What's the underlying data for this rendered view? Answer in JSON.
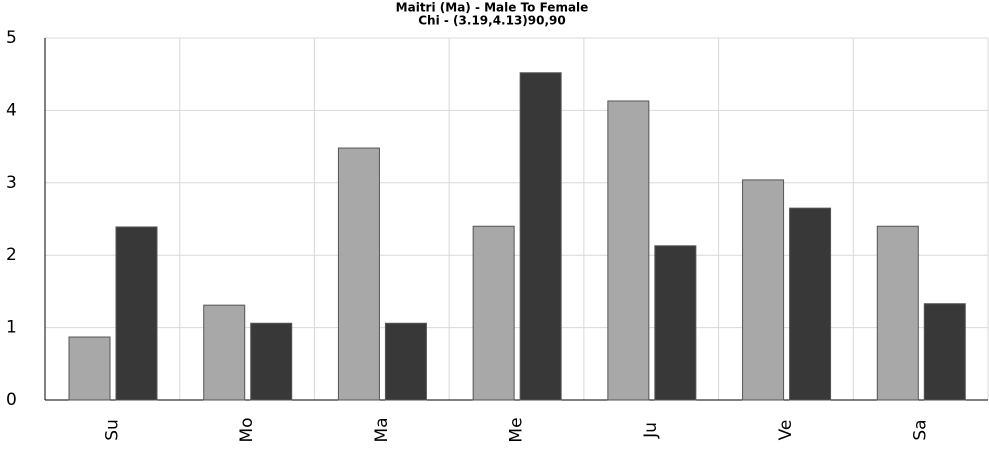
{
  "chart_data": {
    "type": "bar",
    "title": "Maitri (Ma) - Male To Female",
    "subtitle": "Chi - (3.19,4.13)90,90",
    "categories": [
      "Su",
      "Mo",
      "Ma",
      "Me",
      "Ju",
      "Ve",
      "Sa"
    ],
    "series": [
      {
        "color": "#a8a8a8",
        "values": [
          0.87,
          1.31,
          3.48,
          2.4,
          4.13,
          3.04,
          2.4
        ]
      },
      {
        "color": "#383838",
        "values": [
          2.39,
          1.06,
          1.06,
          4.52,
          2.13,
          2.65,
          1.33
        ]
      }
    ],
    "ylim": [
      0,
      5
    ],
    "yticks": [
      0,
      1,
      2,
      3,
      4,
      5
    ],
    "grid": true
  }
}
